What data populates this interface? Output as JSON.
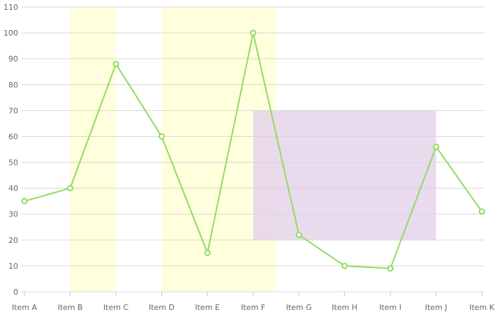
{
  "chart_data": {
    "type": "line",
    "title": "",
    "xlabel": "",
    "ylabel": "",
    "categories": [
      "Item A",
      "Item B",
      "Item C",
      "Item D",
      "Item E",
      "Item F",
      "Item G",
      "Item H",
      "Item I",
      "Item J",
      "Item K"
    ],
    "series": [
      {
        "values": [
          35,
          40,
          88,
          60,
          15,
          100,
          22,
          10,
          9,
          56,
          31
        ],
        "color": "#8fdc5f"
      }
    ],
    "ylim": [
      0,
      110
    ],
    "yticks": [
      "0",
      "10",
      "20",
      "30",
      "40",
      "50",
      "60",
      "70",
      "80",
      "90",
      "100",
      "110"
    ],
    "grid": true,
    "legend": "none",
    "highlight_bands": [
      {
        "from": "Item B",
        "to": "Item C",
        "color": "#ffffdd"
      },
      {
        "from": "Item D",
        "to": "Item F",
        "offset_to": 0.5,
        "color": "#ffffdd"
      }
    ],
    "highlight_regions": [
      {
        "x_from": "Item F",
        "x_to": "Item J",
        "y_from": 20,
        "y_to": 70,
        "color": "#e6d3ea"
      }
    ]
  }
}
